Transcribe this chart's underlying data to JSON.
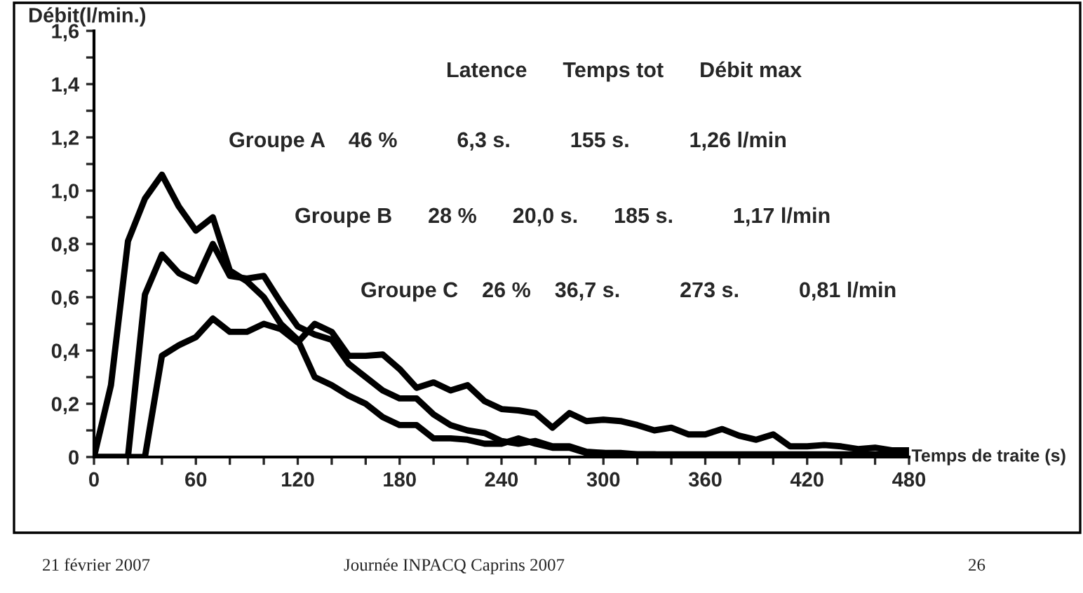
{
  "chart_data": {
    "type": "line",
    "xlabel": "Temps de traite (s)",
    "ylabel": "Débit(l/min.)",
    "x": [
      0,
      10,
      20,
      30,
      40,
      50,
      60,
      70,
      80,
      90,
      100,
      110,
      120,
      130,
      140,
      150,
      160,
      170,
      180,
      190,
      200,
      210,
      220,
      230,
      240,
      250,
      260,
      270,
      280,
      290,
      300,
      310,
      320,
      330,
      340,
      350,
      360,
      370,
      380,
      390,
      400,
      410,
      420,
      430,
      440,
      450,
      460,
      470,
      480
    ],
    "series": [
      {
        "color": "#000000",
        "values": [
          0,
          0.27,
          0.81,
          0.97,
          1.06,
          0.94,
          0.85,
          0.9,
          0.7,
          0.66,
          0.6,
          0.5,
          0.44,
          0.3,
          0.27,
          0.23,
          0.2,
          0.15,
          0.12,
          0.12,
          0.07,
          0.07,
          0.065,
          0.05,
          0.05,
          0.07,
          0.05,
          0.035,
          0.035,
          0.015,
          0.015,
          0.01,
          0.01,
          0.01,
          0.005,
          0.005,
          0,
          0,
          0,
          0,
          0,
          0,
          0,
          0,
          0,
          0,
          0,
          0,
          0
        ]
      },
      {
        "color": "#000000",
        "values": [
          0,
          0,
          0,
          0.61,
          0.76,
          0.69,
          0.66,
          0.8,
          0.68,
          0.67,
          0.68,
          0.58,
          0.49,
          0.46,
          0.44,
          0.35,
          0.3,
          0.25,
          0.22,
          0.22,
          0.16,
          0.12,
          0.1,
          0.09,
          0.06,
          0.05,
          0.06,
          0.04,
          0.04,
          0.02,
          0.015,
          0.015,
          0.01,
          0.01,
          0.01,
          0.01,
          0.01,
          0.01,
          0.01,
          0.01,
          0.01,
          0.01,
          0.01,
          0.01,
          0.01,
          0.01,
          0.01,
          0.01,
          0.01
        ]
      },
      {
        "color": "#000000",
        "values": [
          0,
          0,
          0,
          0,
          0.38,
          0.42,
          0.45,
          0.52,
          0.47,
          0.47,
          0.5,
          0.48,
          0.43,
          0.5,
          0.47,
          0.38,
          0.38,
          0.385,
          0.33,
          0.26,
          0.28,
          0.25,
          0.27,
          0.21,
          0.18,
          0.175,
          0.165,
          0.11,
          0.165,
          0.135,
          0.14,
          0.135,
          0.12,
          0.1,
          0.11,
          0.085,
          0.085,
          0.105,
          0.08,
          0.065,
          0.085,
          0.04,
          0.04,
          0.045,
          0.04,
          0.03,
          0.035,
          0.025,
          0.025
        ]
      }
    ],
    "xlim": [
      0,
      480
    ],
    "xticks": [
      0,
      {
        "value": 20,
        "label": null
      },
      {
        "value": 40,
        "label": null
      },
      60,
      {
        "value": 80,
        "label": null
      },
      {
        "value": 100,
        "label": null
      },
      120,
      {
        "value": 140,
        "label": null
      },
      {
        "value": 160,
        "label": null
      },
      180,
      {
        "value": 200,
        "label": null
      },
      {
        "value": 220,
        "label": null
      },
      240,
      {
        "value": 260,
        "label": null
      },
      {
        "value": 280,
        "label": null
      },
      300,
      {
        "value": 320,
        "label": null
      },
      {
        "value": 340,
        "label": null
      },
      360,
      {
        "value": 380,
        "label": null
      },
      {
        "value": 400,
        "label": null
      },
      420,
      {
        "value": 440,
        "label": null
      },
      {
        "value": 460,
        "label": null
      },
      480
    ],
    "ylim": [
      0,
      1.6
    ],
    "yticks": [
      {
        "value": 0,
        "label": "0"
      },
      {
        "value": 0.1,
        "label": null
      },
      {
        "value": 0.2,
        "label": "0,2"
      },
      {
        "value": 0.3,
        "label": null
      },
      {
        "value": 0.4,
        "label": "0,4"
      },
      {
        "value": 0.5,
        "label": null
      },
      {
        "value": 0.6,
        "label": "0,6"
      },
      {
        "value": 0.7,
        "label": null
      },
      {
        "value": 0.8,
        "label": "0,8"
      },
      {
        "value": 0.9,
        "label": null
      },
      {
        "value": 1.0,
        "label": "1,0"
      },
      {
        "value": 1.1,
        "label": null
      },
      {
        "value": 1.2,
        "label": "1,2"
      },
      {
        "value": 1.3,
        "label": null
      },
      {
        "value": 1.4,
        "label": "1,4"
      },
      {
        "value": 1.5,
        "label": null
      },
      {
        "value": 1.6,
        "label": "1,6"
      }
    ],
    "grid": false,
    "legend": false,
    "marker": "none",
    "line_style": "solid",
    "annotations": [
      "Latence      Temps tot      Débit max",
      "Groupe A    46 %          6,3 s.          155 s.          1,26 l/min",
      "Groupe B      28 %      20,0 s.      185 s.          1,17 l/min",
      "Groupe C    26 %    36,7 s.          273 s.          0,81 l/min",
      "21 février 2007",
      "Journée INPACQ Caprins 2007",
      "26"
    ]
  }
}
